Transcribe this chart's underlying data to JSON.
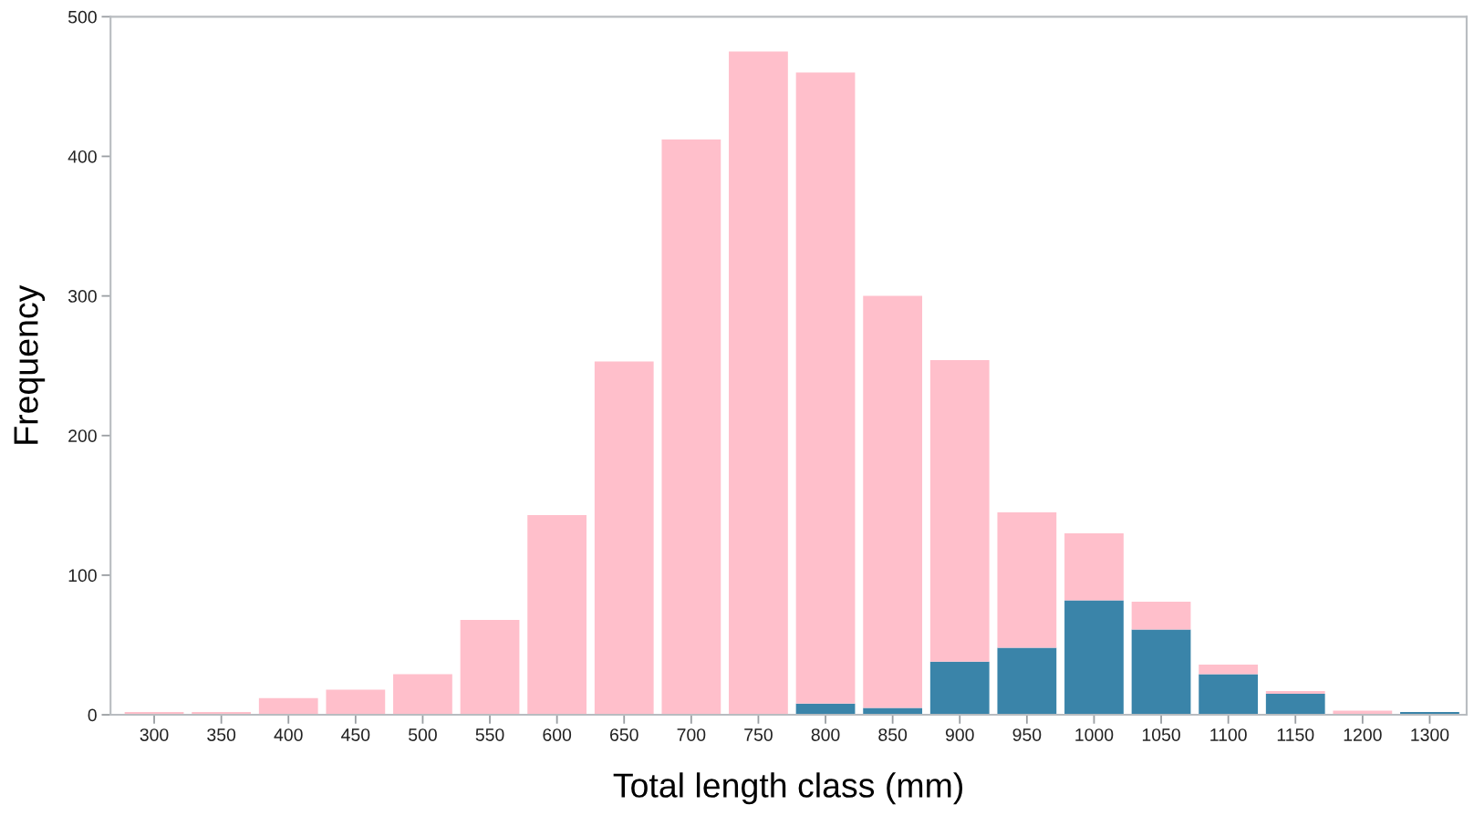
{
  "chart_data": {
    "type": "bar",
    "stacked": true,
    "xlabel": "Total length class (mm)",
    "ylabel": "Frequency",
    "categories": [
      "300",
      "350",
      "400",
      "450",
      "500",
      "550",
      "600",
      "650",
      "700",
      "750",
      "800",
      "850",
      "900",
      "950",
      "1000",
      "1050",
      "1100",
      "1150",
      "1200",
      "1300"
    ],
    "series": [
      {
        "color": "#3a84a9",
        "values": [
          0,
          0,
          0,
          0,
          0,
          0,
          0,
          0,
          0,
          0,
          8,
          5,
          38,
          48,
          82,
          61,
          29,
          15,
          0,
          2
        ]
      },
      {
        "color": "#ffbfcb",
        "values": [
          2,
          2,
          12,
          18,
          29,
          68,
          143,
          253,
          412,
          475,
          452,
          295,
          216,
          97,
          48,
          20,
          7,
          2,
          3,
          0
        ]
      }
    ],
    "ylim": [
      0,
      500
    ],
    "yticks": [
      0,
      100,
      200,
      300,
      400,
      500
    ],
    "grid": false,
    "legend": false
  }
}
